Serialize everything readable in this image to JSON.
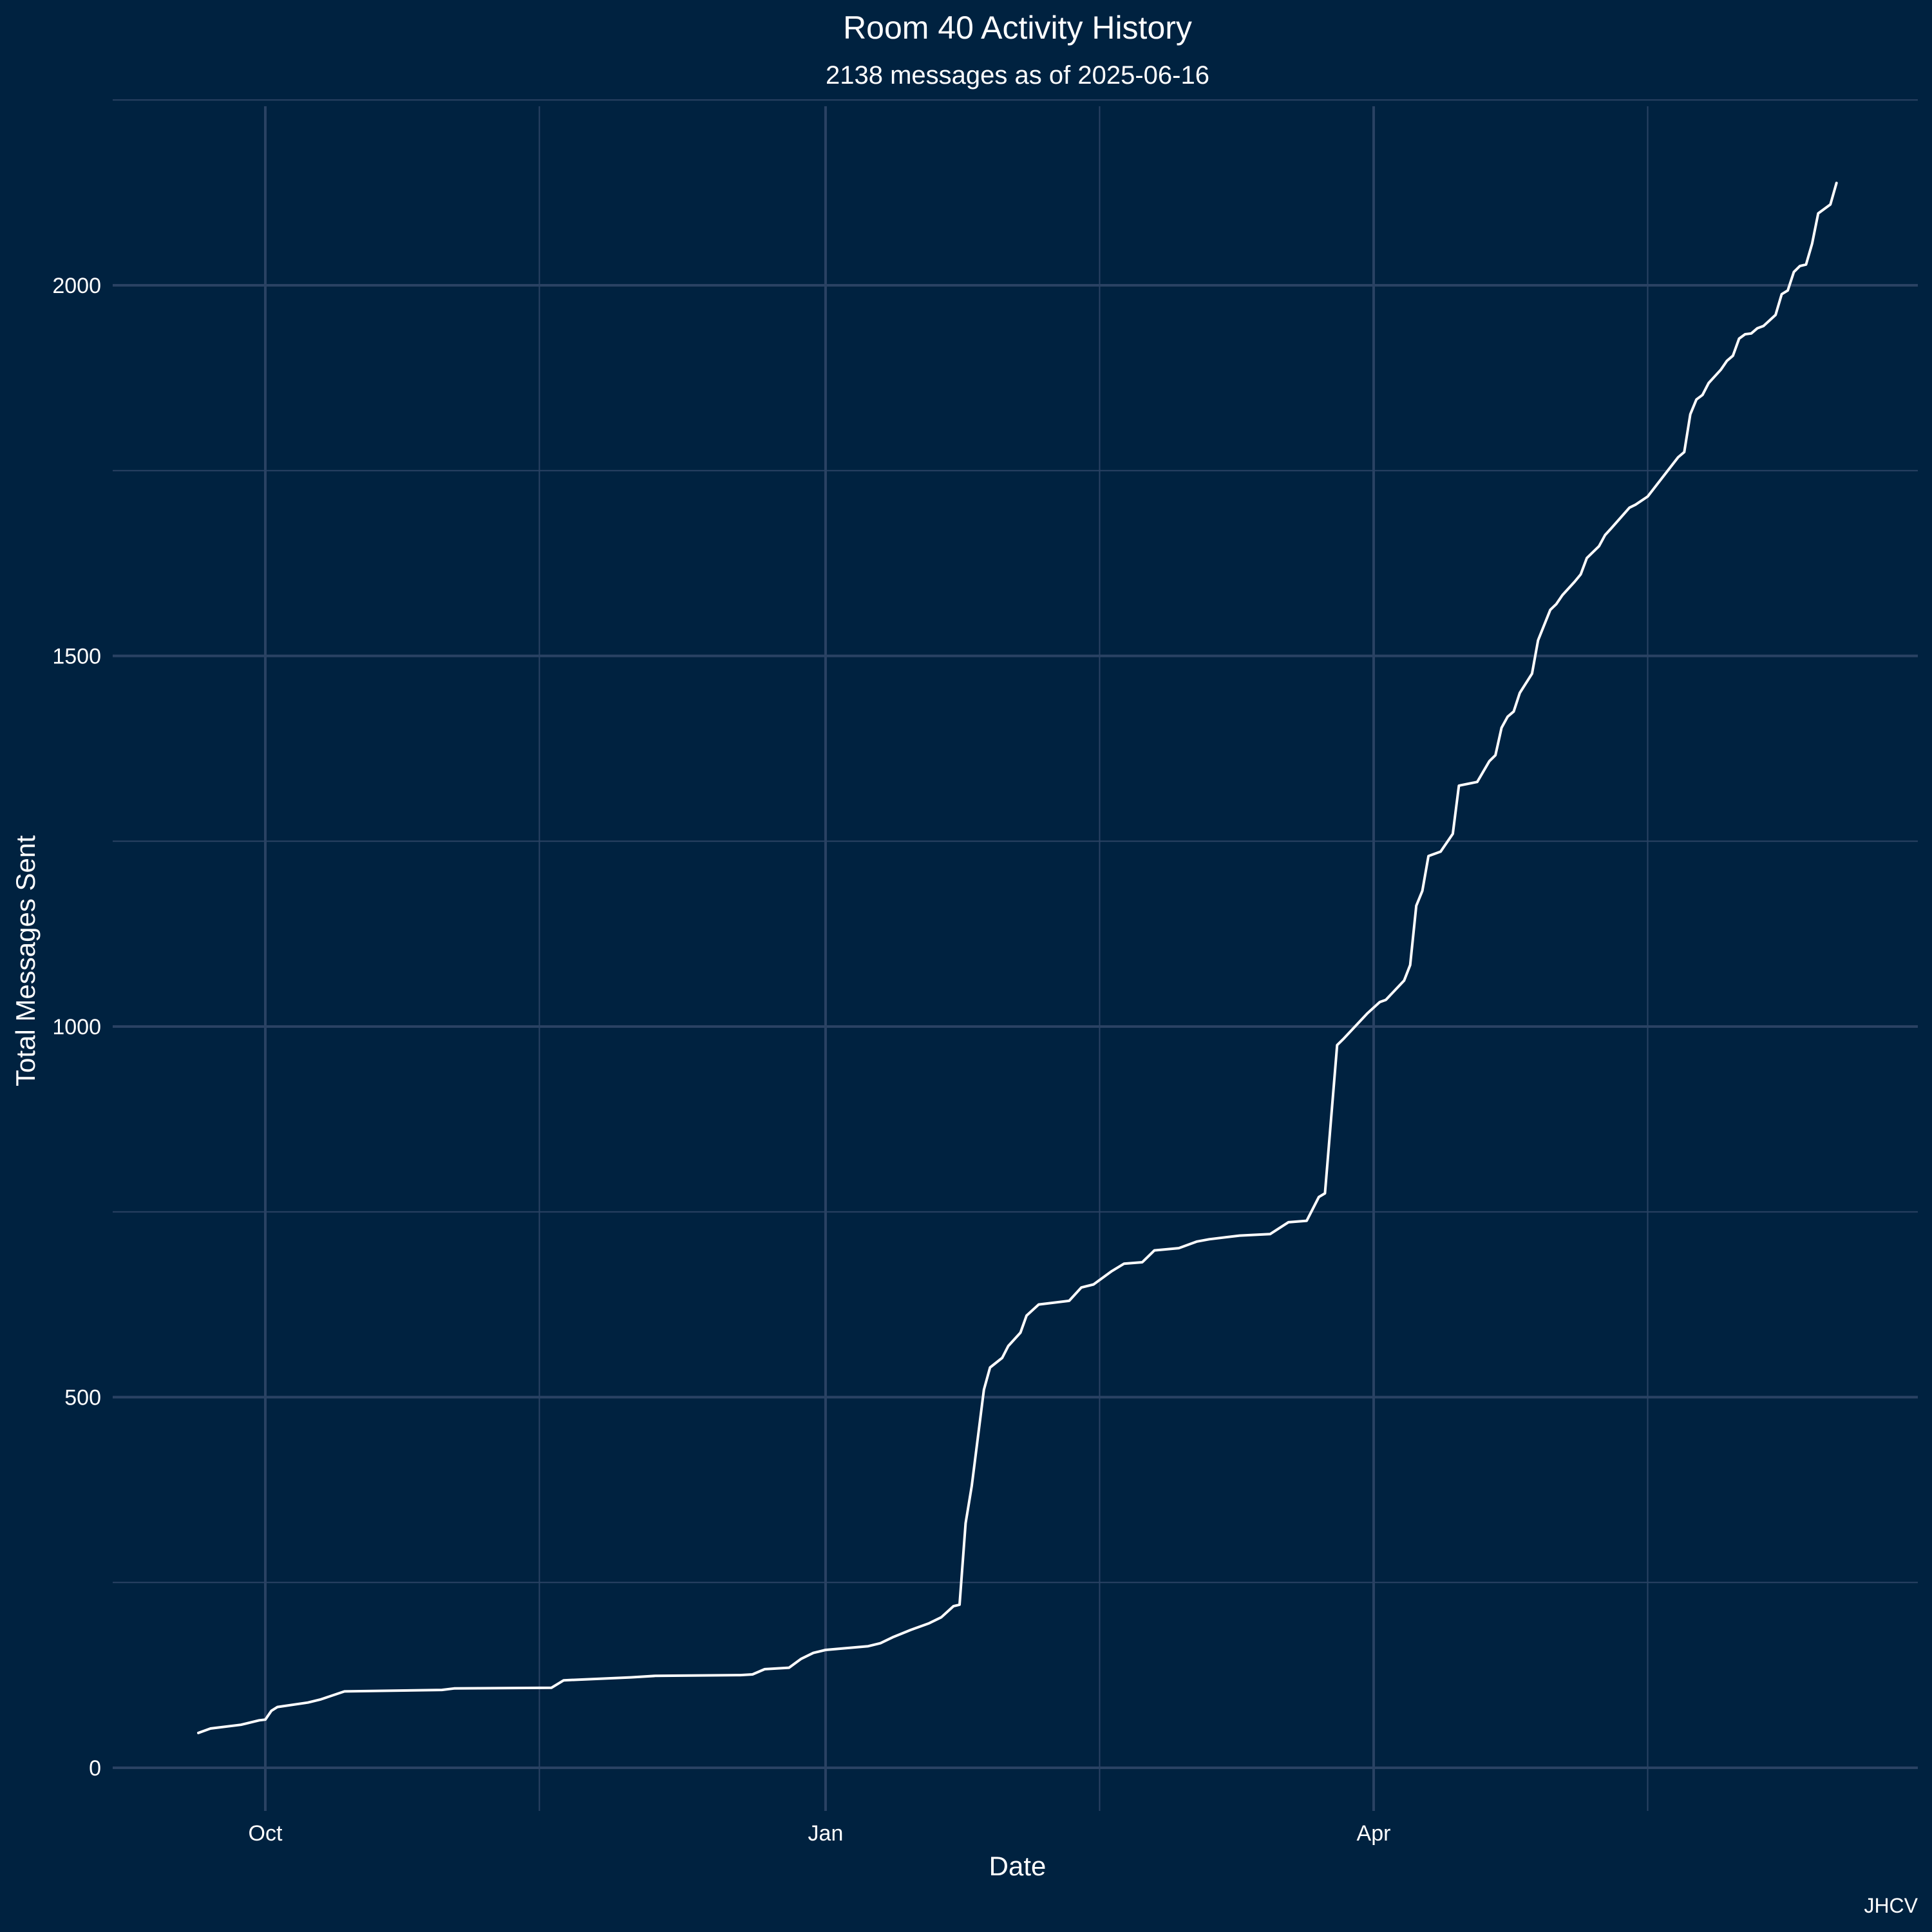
{
  "chart_data": {
    "type": "line",
    "title": "Room 40 Activity History",
    "subtitle": "2138 messages as of 2025-06-16",
    "xlabel": "Date",
    "ylabel": "Total Messages Sent",
    "caption": "JHCV",
    "ylim": [
      0,
      2300
    ],
    "xlim": [
      "2024-09-04",
      "2025-06-29"
    ],
    "y_ticks": [
      0,
      500,
      1000,
      1500,
      2000
    ],
    "x_ticks": [
      {
        "date": "2024-10-01",
        "label": "Oct"
      },
      {
        "date": "2025-01-01",
        "label": "Jan"
      },
      {
        "date": "2025-04-01",
        "label": "Apr"
      }
    ],
    "x_minor_ticks": [
      "2024-11-15",
      "2025-02-15",
      "2025-05-16"
    ],
    "grid": true,
    "colors": {
      "background": "#002240",
      "grid": "#2a4263",
      "line": "#ffffff",
      "text": "#ffffff"
    },
    "series": [
      {
        "points": [
          [
            "2024-09-20",
            47
          ],
          [
            "2024-09-22",
            53
          ],
          [
            "2024-09-27",
            58
          ],
          [
            "2024-09-30",
            64
          ],
          [
            "2024-10-01",
            65
          ],
          [
            "2024-10-02",
            77
          ],
          [
            "2024-10-03",
            82
          ],
          [
            "2024-10-08",
            88
          ],
          [
            "2024-10-10",
            92
          ],
          [
            "2024-10-14",
            103
          ],
          [
            "2024-10-30",
            105
          ],
          [
            "2024-11-01",
            107
          ],
          [
            "2024-11-17",
            108
          ],
          [
            "2024-11-19",
            118
          ],
          [
            "2024-11-30",
            122
          ],
          [
            "2024-12-04",
            124
          ],
          [
            "2024-12-18",
            125
          ],
          [
            "2024-12-20",
            126
          ],
          [
            "2024-12-22",
            133
          ],
          [
            "2024-12-26",
            135
          ],
          [
            "2024-12-28",
            147
          ],
          [
            "2024-12-30",
            155
          ],
          [
            "2025-01-01",
            159
          ],
          [
            "2025-01-08",
            164
          ],
          [
            "2025-01-10",
            168
          ],
          [
            "2025-01-12",
            176
          ],
          [
            "2025-01-15",
            186
          ],
          [
            "2025-01-18",
            195
          ],
          [
            "2025-01-20",
            203
          ],
          [
            "2025-01-22",
            218
          ],
          [
            "2025-01-23",
            220
          ],
          [
            "2025-01-24",
            330
          ],
          [
            "2025-01-25",
            380
          ],
          [
            "2025-01-27",
            510
          ],
          [
            "2025-01-28",
            540
          ],
          [
            "2025-01-30",
            553
          ],
          [
            "2025-01-31",
            569
          ],
          [
            "2025-02-02",
            587
          ],
          [
            "2025-02-03",
            610
          ],
          [
            "2025-02-05",
            625
          ],
          [
            "2025-02-10",
            630
          ],
          [
            "2025-02-12",
            648
          ],
          [
            "2025-02-14",
            652
          ],
          [
            "2025-02-17",
            670
          ],
          [
            "2025-02-19",
            680
          ],
          [
            "2025-02-22",
            682
          ],
          [
            "2025-02-24",
            698
          ],
          [
            "2025-02-28",
            701
          ],
          [
            "2025-03-03",
            710
          ],
          [
            "2025-03-05",
            713
          ],
          [
            "2025-03-10",
            718
          ],
          [
            "2025-03-15",
            720
          ],
          [
            "2025-03-18",
            736
          ],
          [
            "2025-03-21",
            738
          ],
          [
            "2025-03-23",
            770
          ],
          [
            "2025-03-24",
            775
          ],
          [
            "2025-03-26",
            975
          ],
          [
            "2025-03-27",
            983
          ],
          [
            "2025-03-31",
            1018
          ],
          [
            "2025-04-02",
            1033
          ],
          [
            "2025-04-03",
            1036
          ],
          [
            "2025-04-06",
            1062
          ],
          [
            "2025-04-07",
            1083
          ],
          [
            "2025-04-08",
            1163
          ],
          [
            "2025-04-09",
            1183
          ],
          [
            "2025-04-10",
            1230
          ],
          [
            "2025-04-12",
            1236
          ],
          [
            "2025-04-14",
            1260
          ],
          [
            "2025-04-15",
            1325
          ],
          [
            "2025-04-18",
            1330
          ],
          [
            "2025-04-20",
            1358
          ],
          [
            "2025-04-21",
            1366
          ],
          [
            "2025-04-22",
            1403
          ],
          [
            "2025-04-23",
            1418
          ],
          [
            "2025-04-24",
            1425
          ],
          [
            "2025-04-25",
            1450
          ],
          [
            "2025-04-27",
            1476
          ],
          [
            "2025-04-28",
            1521
          ],
          [
            "2025-04-30",
            1562
          ],
          [
            "2025-05-01",
            1570
          ],
          [
            "2025-05-02",
            1582
          ],
          [
            "2025-05-04",
            1600
          ],
          [
            "2025-05-05",
            1610
          ],
          [
            "2025-05-06",
            1632
          ],
          [
            "2025-05-08",
            1648
          ],
          [
            "2025-05-09",
            1663
          ],
          [
            "2025-05-10",
            1672
          ],
          [
            "2025-05-13",
            1700
          ],
          [
            "2025-05-14",
            1704
          ],
          [
            "2025-05-16",
            1715
          ],
          [
            "2025-05-21",
            1768
          ],
          [
            "2025-05-22",
            1775
          ],
          [
            "2025-05-23",
            1826
          ],
          [
            "2025-05-24",
            1846
          ],
          [
            "2025-05-25",
            1852
          ],
          [
            "2025-05-26",
            1868
          ],
          [
            "2025-05-28",
            1886
          ],
          [
            "2025-05-29",
            1898
          ],
          [
            "2025-05-30",
            1905
          ],
          [
            "2025-05-31",
            1928
          ],
          [
            "2025-06-01",
            1934
          ],
          [
            "2025-06-02",
            1935
          ],
          [
            "2025-06-03",
            1942
          ],
          [
            "2025-06-04",
            1945
          ],
          [
            "2025-06-06",
            1960
          ],
          [
            "2025-06-07",
            1988
          ],
          [
            "2025-06-08",
            1993
          ],
          [
            "2025-06-09",
            2018
          ],
          [
            "2025-06-10",
            2026
          ],
          [
            "2025-06-11",
            2028
          ],
          [
            "2025-06-12",
            2056
          ],
          [
            "2025-06-13",
            2097
          ],
          [
            "2025-06-15",
            2109
          ],
          [
            "2025-06-16",
            2138
          ]
        ]
      }
    ]
  }
}
